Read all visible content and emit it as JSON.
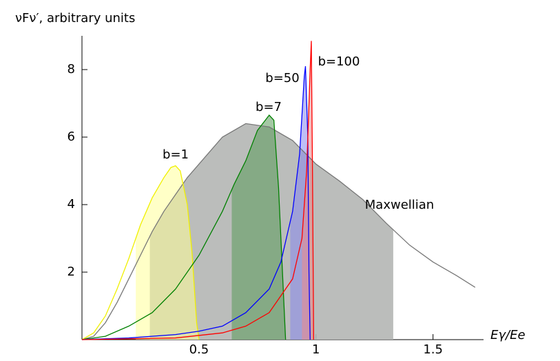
{
  "chart_data": {
    "type": "line",
    "y_label": "νFν′, arbitrary units",
    "x_label": "Eγ/Ee",
    "xlim": [
      0,
      1.71
    ],
    "ylim": [
      0,
      9
    ],
    "xticks": [
      0.5,
      1,
      1.5
    ],
    "yticks": [
      2,
      4,
      6,
      8
    ],
    "series": [
      {
        "name": "Maxwellian",
        "color": "#777777",
        "fill_color": "#b4b6b4",
        "x": [
          0,
          0.05,
          0.1,
          0.15,
          0.2,
          0.25,
          0.3,
          0.35,
          0.4,
          0.45,
          0.5,
          0.6,
          0.7,
          0.8,
          0.9,
          1.0,
          1.1,
          1.2,
          1.3,
          1.4,
          1.5,
          1.6,
          1.68
        ],
        "values": [
          0,
          0.1,
          0.5,
          1.1,
          1.8,
          2.5,
          3.2,
          3.8,
          4.3,
          4.8,
          5.2,
          6.0,
          6.4,
          6.3,
          5.9,
          5.2,
          4.7,
          4.15,
          3.45,
          2.8,
          2.3,
          1.9,
          1.55
        ],
        "shade": [
          0.29,
          1.33
        ]
      },
      {
        "name": "b=1",
        "color": "#f0f000",
        "fill_color": "#ffff99",
        "x": [
          0,
          0.05,
          0.1,
          0.15,
          0.2,
          0.25,
          0.3,
          0.35,
          0.38,
          0.4,
          0.42,
          0.45,
          0.47,
          0.49,
          0.5
        ],
        "values": [
          0,
          0.2,
          0.7,
          1.5,
          2.4,
          3.4,
          4.2,
          4.8,
          5.1,
          5.15,
          5.0,
          4.0,
          2.6,
          0.5,
          0
        ],
        "shade": [
          0.23,
          0.5
        ]
      },
      {
        "name": "b=7",
        "color": "#008000",
        "fill_color": "#5a9a5a",
        "x": [
          0,
          0.1,
          0.2,
          0.3,
          0.4,
          0.5,
          0.6,
          0.65,
          0.7,
          0.75,
          0.8,
          0.82,
          0.84,
          0.86,
          0.87
        ],
        "values": [
          0,
          0.1,
          0.4,
          0.8,
          1.5,
          2.5,
          3.8,
          4.6,
          5.3,
          6.2,
          6.65,
          6.5,
          4.5,
          1.5,
          0
        ],
        "shade": [
          0.64,
          0.87
        ]
      },
      {
        "name": "b=50",
        "color": "#0000ff",
        "fill_color": "#8888ee",
        "x": [
          0,
          0.2,
          0.4,
          0.5,
          0.6,
          0.7,
          0.8,
          0.85,
          0.9,
          0.93,
          0.95,
          0.955,
          0.965,
          0.97,
          0.975
        ],
        "values": [
          0,
          0.05,
          0.15,
          0.25,
          0.4,
          0.8,
          1.5,
          2.3,
          3.8,
          5.5,
          7.8,
          8.1,
          6.0,
          2.0,
          0
        ],
        "shade": [
          0.89,
          0.975
        ]
      },
      {
        "name": "b=100",
        "color": "#ff0000",
        "fill_color": "#ee8888",
        "x": [
          0,
          0.4,
          0.6,
          0.7,
          0.8,
          0.9,
          0.94,
          0.96,
          0.975,
          0.98,
          0.985,
          0.99
        ],
        "values": [
          0,
          0.05,
          0.2,
          0.4,
          0.8,
          1.8,
          3.0,
          5.0,
          8.0,
          8.85,
          5.0,
          0
        ],
        "shade": [
          0.94,
          0.99
        ]
      }
    ]
  }
}
